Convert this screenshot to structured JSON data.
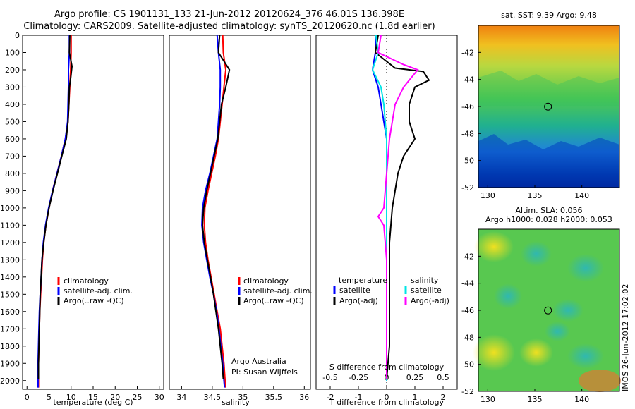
{
  "title": {
    "line1": "Argo profile: CS 1901131_133 21-Jun-2012 20120624_376 46.01S 136.398E",
    "line2": "Climatology: CARS2009. Satellite-adjusted climatology: synTS_20120620.nc (1.8d earlier)"
  },
  "credit": {
    "org": "Argo Australia",
    "pi": "PI: Susan Wijffels"
  },
  "stamp": "IMOS 26-Jun-2012 17:02:02",
  "colors": {
    "climatology": "#ff0000",
    "satellite": "#0000ff",
    "argo": "#000000",
    "salinity_sat": "#00e5e5",
    "salinity_argo": "#ff00ff"
  },
  "chart_data": [
    {
      "type": "line",
      "name": "temperature",
      "xlabel": "temperature (deg C)",
      "ylabel": "",
      "xlim": [
        -1,
        31
      ],
      "ylim": [
        2050,
        0
      ],
      "xticks": [
        0,
        5,
        10,
        15,
        20,
        25,
        30
      ],
      "yticks": [
        0,
        100,
        200,
        300,
        400,
        500,
        600,
        700,
        800,
        900,
        1000,
        1100,
        1200,
        1300,
        1400,
        1500,
        1600,
        1700,
        1800,
        1900,
        2000
      ],
      "legend": [
        "climatology",
        "satellite-adj. clim.",
        "Argo(..raw -QC)"
      ],
      "series": [
        {
          "name": "climatology",
          "color": "#ff0000",
          "points": [
            [
              10.0,
              0
            ],
            [
              10.0,
              100
            ],
            [
              9.9,
              200
            ],
            [
              9.7,
              300
            ],
            [
              9.5,
              400
            ],
            [
              9.3,
              500
            ],
            [
              8.7,
              600
            ],
            [
              7.8,
              700
            ],
            [
              6.8,
              800
            ],
            [
              5.8,
              900
            ],
            [
              5.0,
              1000
            ],
            [
              4.3,
              1100
            ],
            [
              3.8,
              1200
            ],
            [
              3.5,
              1300
            ],
            [
              3.3,
              1400
            ],
            [
              3.1,
              1500
            ],
            [
              2.9,
              1600
            ],
            [
              2.8,
              1700
            ],
            [
              2.7,
              1800
            ],
            [
              2.6,
              1900
            ],
            [
              2.6,
              2000
            ],
            [
              2.6,
              2040
            ]
          ]
        },
        {
          "name": "satellite-adj. clim.",
          "color": "#0000ff",
          "points": [
            [
              9.6,
              0
            ],
            [
              9.6,
              100
            ],
            [
              9.4,
              200
            ],
            [
              9.4,
              300
            ],
            [
              9.3,
              400
            ],
            [
              9.2,
              500
            ],
            [
              8.7,
              600
            ],
            [
              7.8,
              700
            ],
            [
              6.8,
              800
            ],
            [
              5.8,
              900
            ],
            [
              4.9,
              1000
            ],
            [
              4.2,
              1100
            ],
            [
              3.7,
              1200
            ],
            [
              3.4,
              1300
            ],
            [
              3.2,
              1400
            ],
            [
              3.0,
              1500
            ],
            [
              2.8,
              1600
            ],
            [
              2.7,
              1700
            ],
            [
              2.6,
              1800
            ],
            [
              2.5,
              1900
            ],
            [
              2.5,
              2000
            ],
            [
              2.5,
              2040
            ]
          ]
        },
        {
          "name": "Argo(..raw -QC)",
          "color": "#000000",
          "points": [
            [
              9.7,
              0
            ],
            [
              9.6,
              100
            ],
            [
              10.2,
              180
            ],
            [
              9.9,
              250
            ],
            [
              9.6,
              300
            ],
            [
              9.5,
              400
            ],
            [
              9.3,
              500
            ],
            [
              8.9,
              600
            ],
            [
              7.9,
              700
            ],
            [
              6.9,
              800
            ],
            [
              5.9,
              900
            ],
            [
              5.0,
              1000
            ],
            [
              4.3,
              1100
            ],
            [
              3.8,
              1200
            ],
            [
              3.4,
              1300
            ],
            [
              3.2,
              1400
            ],
            [
              3.0,
              1500
            ],
            [
              2.9,
              1600
            ],
            [
              2.8,
              1700
            ],
            [
              2.7,
              1800
            ],
            [
              2.6,
              1900
            ],
            [
              2.6,
              1990
            ]
          ]
        }
      ]
    },
    {
      "type": "line",
      "name": "salinity",
      "xlabel": "salinity",
      "ylabel": "",
      "xlim": [
        33.8,
        36.1
      ],
      "ylim": [
        2050,
        0
      ],
      "xticks": [
        34,
        34.5,
        35,
        35.5,
        36
      ],
      "legend": [
        "climatology",
        "satellite-adj. clim.",
        "Argo(..raw -QC)"
      ],
      "series": [
        {
          "name": "climatology",
          "color": "#ff0000",
          "points": [
            [
              34.67,
              0
            ],
            [
              34.68,
              100
            ],
            [
              34.72,
              200
            ],
            [
              34.69,
              300
            ],
            [
              34.66,
              400
            ],
            [
              34.63,
              500
            ],
            [
              34.6,
              600
            ],
            [
              34.55,
              700
            ],
            [
              34.49,
              800
            ],
            [
              34.43,
              900
            ],
            [
              34.38,
              1000
            ],
            [
              34.37,
              1100
            ],
            [
              34.39,
              1200
            ],
            [
              34.43,
              1300
            ],
            [
              34.48,
              1400
            ],
            [
              34.53,
              1500
            ],
            [
              34.58,
              1600
            ],
            [
              34.63,
              1700
            ],
            [
              34.66,
              1800
            ],
            [
              34.69,
              1900
            ],
            [
              34.71,
              2000
            ],
            [
              34.72,
              2040
            ]
          ]
        },
        {
          "name": "satellite-adj. clim.",
          "color": "#0000ff",
          "points": [
            [
              34.58,
              0
            ],
            [
              34.6,
              100
            ],
            [
              34.63,
              200
            ],
            [
              34.63,
              300
            ],
            [
              34.62,
              400
            ],
            [
              34.6,
              500
            ],
            [
              34.58,
              600
            ],
            [
              34.52,
              700
            ],
            [
              34.46,
              800
            ],
            [
              34.39,
              900
            ],
            [
              34.34,
              1000
            ],
            [
              34.33,
              1100
            ],
            [
              34.36,
              1200
            ],
            [
              34.41,
              1300
            ],
            [
              34.46,
              1400
            ],
            [
              34.52,
              1500
            ],
            [
              34.57,
              1600
            ],
            [
              34.61,
              1700
            ],
            [
              34.64,
              1800
            ],
            [
              34.67,
              1900
            ],
            [
              34.69,
              2000
            ],
            [
              34.7,
              2040
            ]
          ]
        },
        {
          "name": "Argo(..raw -QC)",
          "color": "#000000",
          "points": [
            [
              34.62,
              0
            ],
            [
              34.6,
              100
            ],
            [
              34.78,
              200
            ],
            [
              34.72,
              300
            ],
            [
              34.65,
              400
            ],
            [
              34.62,
              500
            ],
            [
              34.59,
              600
            ],
            [
              34.53,
              700
            ],
            [
              34.47,
              800
            ],
            [
              34.41,
              900
            ],
            [
              34.36,
              1000
            ],
            [
              34.34,
              1100
            ],
            [
              34.37,
              1200
            ],
            [
              34.42,
              1300
            ],
            [
              34.47,
              1400
            ],
            [
              34.52,
              1500
            ],
            [
              34.56,
              1600
            ],
            [
              34.6,
              1700
            ],
            [
              34.63,
              1800
            ],
            [
              34.66,
              1900
            ],
            [
              34.68,
              1990
            ]
          ]
        }
      ]
    },
    {
      "type": "line",
      "name": "differences",
      "xlabel": "T difference from climatology",
      "top_label": "S difference from climatology",
      "xlim": [
        -2.5,
        2.5
      ],
      "top_xlim": [
        -0.625,
        0.625
      ],
      "ylim": [
        2050,
        0
      ],
      "xticks": [
        -2,
        -1,
        0,
        1,
        2
      ],
      "top_xticks": [
        "-0.5",
        "-0.25",
        "0",
        "0.25",
        "0.5"
      ],
      "legend_groups": [
        {
          "heading": "temperature",
          "items": [
            "satellite",
            "Argo(-adj)"
          ]
        },
        {
          "heading": "salinity",
          "items": [
            "satellite",
            "Argo(-adj)"
          ]
        }
      ],
      "series": [
        {
          "name": "satellite",
          "group": "temperature",
          "color": "#0000ff",
          "points": [
            [
              -0.4,
              0
            ],
            [
              -0.4,
              100
            ],
            [
              -0.5,
              200
            ],
            [
              -0.3,
              300
            ],
            [
              -0.2,
              400
            ],
            [
              -0.1,
              500
            ],
            [
              0,
              600
            ],
            [
              0,
              800
            ],
            [
              0,
              1000
            ],
            [
              0,
              1200
            ],
            [
              0,
              1400
            ],
            [
              0,
              1600
            ],
            [
              0,
              1800
            ],
            [
              0,
              2000
            ]
          ]
        },
        {
          "name": "Argo(-adj)",
          "group": "temperature",
          "color": "#000000",
          "points": [
            [
              -0.3,
              0
            ],
            [
              -0.4,
              100
            ],
            [
              0.3,
              190
            ],
            [
              1.3,
              210
            ],
            [
              1.5,
              260
            ],
            [
              1.0,
              300
            ],
            [
              0.8,
              400
            ],
            [
              0.8,
              500
            ],
            [
              1.0,
              600
            ],
            [
              0.6,
              700
            ],
            [
              0.4,
              800
            ],
            [
              0.3,
              900
            ],
            [
              0.2,
              1000
            ],
            [
              0.1,
              1200
            ],
            [
              0.1,
              1400
            ],
            [
              0.1,
              1600
            ],
            [
              0.1,
              1800
            ],
            [
              0.0,
              1990
            ]
          ]
        },
        {
          "name": "satellite",
          "group": "salinity",
          "color": "#00e5e5",
          "points": [
            [
              -0.38,
              0
            ],
            [
              -0.3,
              100
            ],
            [
              -0.5,
              200
            ],
            [
              -0.2,
              300
            ],
            [
              -0.1,
              400
            ],
            [
              0,
              600
            ],
            [
              0,
              800
            ],
            [
              0,
              1000
            ],
            [
              0,
              1200
            ],
            [
              0,
              1400
            ],
            [
              0,
              1600
            ],
            [
              0,
              1800
            ],
            [
              0,
              2000
            ]
          ]
        },
        {
          "name": "Argo(-adj)",
          "group": "salinity",
          "color": "#ff00ff",
          "points": [
            [
              -0.2,
              0
            ],
            [
              -0.3,
              100
            ],
            [
              0.6,
              170
            ],
            [
              1.1,
              200
            ],
            [
              0.6,
              300
            ],
            [
              0.3,
              400
            ],
            [
              0.1,
              600
            ],
            [
              0.0,
              800
            ],
            [
              -0.1,
              1000
            ],
            [
              -0.3,
              1050
            ],
            [
              -0.1,
              1100
            ],
            [
              0.0,
              1300
            ],
            [
              0.0,
              1500
            ],
            [
              0.0,
              1700
            ],
            [
              0.0,
              1900
            ],
            [
              0.0,
              1990
            ]
          ]
        }
      ]
    },
    {
      "type": "heatmap",
      "name": "sst-map",
      "title": "sat. SST: 9.39 Argo: 9.48",
      "xlim": [
        129,
        144
      ],
      "ylim": [
        -52,
        -40
      ],
      "xticks": [
        130,
        135,
        140
      ],
      "yticks": [
        -42,
        -44,
        -46,
        -48,
        -50,
        -52
      ],
      "marker": {
        "lon": 136.4,
        "lat": -46.01
      }
    },
    {
      "type": "heatmap",
      "name": "sla-map",
      "title": "Altim. SLA: 0.056",
      "subtitle": "Argo h1000: 0.028 h2000: 0.053",
      "xlim": [
        129,
        144
      ],
      "ylim": [
        -52,
        -40
      ],
      "xticks": [
        130,
        135,
        140
      ],
      "yticks": [
        -42,
        -44,
        -46,
        -48,
        -50,
        -52
      ],
      "marker": {
        "lon": 136.4,
        "lat": -46.01
      }
    }
  ]
}
